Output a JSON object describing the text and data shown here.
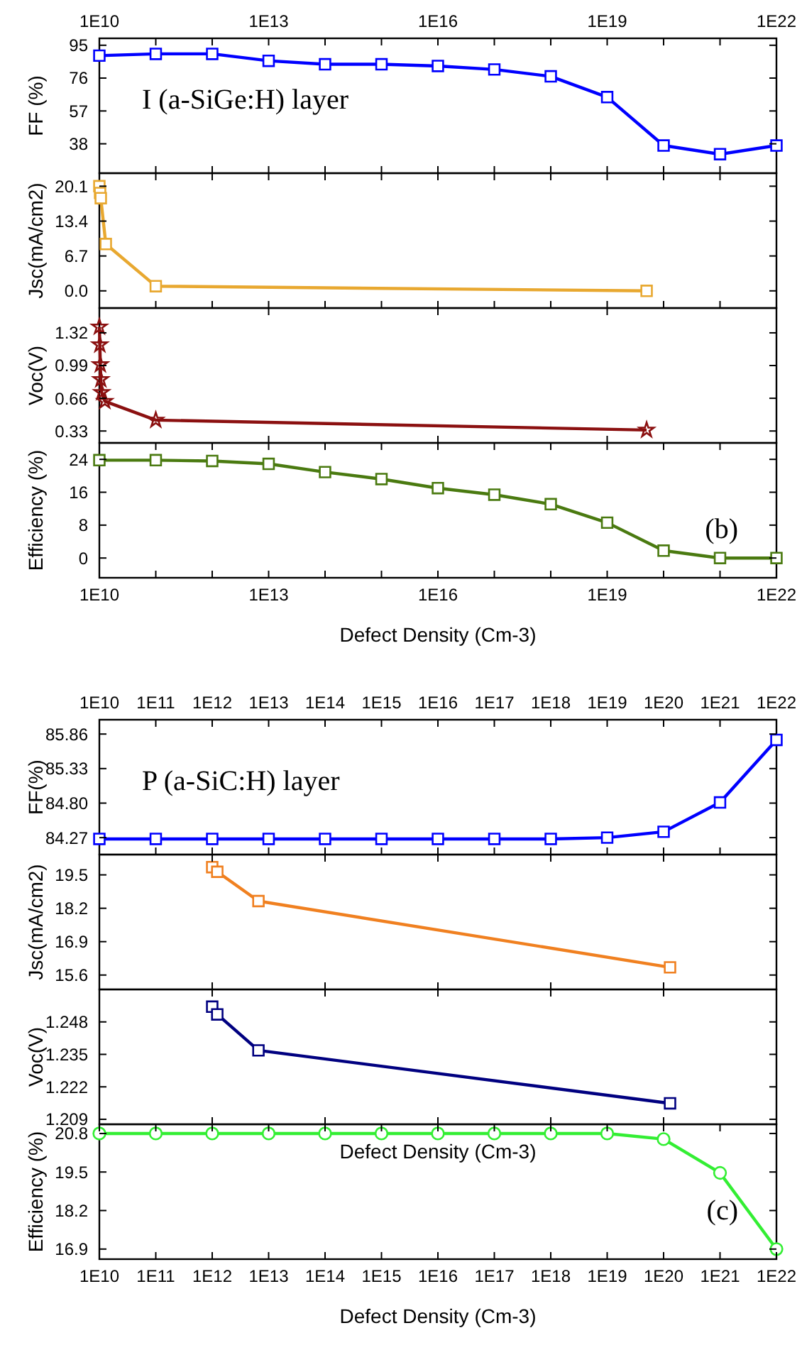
{
  "chart_data": [
    {
      "type": "line",
      "ylabel": "FF (%)",
      "annotations": [
        "I (a-SiGe:H) layer"
      ],
      "marker": "square",
      "xlim": [
        10000000000.0,
        1e+22
      ],
      "log": "x",
      "x": [
        10000000000.0,
        100000000000.0,
        1000000000000.0,
        10000000000000.0,
        100000000000000.0,
        1000000000000000.0,
        1e+16,
        1e+17,
        1e+18,
        1e+19,
        1e+20,
        1e+21,
        1e+22
      ],
      "series": [
        {
          "color": "#0000ff",
          "values": [
            89,
            90,
            90,
            86,
            84,
            84,
            83,
            81,
            77,
            65,
            37,
            32,
            37
          ]
        }
      ],
      "ylim": [
        21,
        99
      ],
      "yticks": [
        38,
        57,
        76,
        95
      ],
      "xticks": [
        {
          "value": 10000000000.0,
          "label": "1E10"
        },
        {
          "value": 100000000000.0,
          "label": null
        },
        {
          "value": 1000000000000.0,
          "label": null
        },
        {
          "value": 10000000000000.0,
          "label": "1E13"
        },
        {
          "value": 100000000000000.0,
          "label": null
        },
        {
          "value": 1000000000000000.0,
          "label": null
        },
        {
          "value": 1e+16,
          "label": "1E16"
        },
        {
          "value": 1e+17,
          "label": null
        },
        {
          "value": 1e+18,
          "label": null
        },
        {
          "value": 1e+19,
          "label": "1E19"
        },
        {
          "value": 1e+20,
          "label": null
        },
        {
          "value": 1e+21,
          "label": null
        },
        {
          "value": 1e+22,
          "label": "1E22"
        }
      ]
    },
    {
      "type": "line",
      "ylabel": "Jsc(mA/cm2)",
      "marker": "square",
      "tick_labels": "y",
      "xlim": [
        10000000000.0,
        1e+22
      ],
      "log": "x",
      "x": [
        10000000000.0,
        10300000000.0,
        10600000000.0,
        13000000000.0,
        100000000000.0,
        5e+19
      ],
      "series": [
        {
          "color": "#e8a830",
          "values": [
            20.1,
            18.8,
            17.8,
            9.0,
            0.9,
            0.0
          ]
        }
      ],
      "ylim": [
        -3.3,
        22.6
      ],
      "yticks": [
        {
          "value": 0,
          "label": "0.0"
        },
        6.7,
        13.4,
        20.1
      ],
      "xticks": [
        {
          "value": 100000000000.0,
          "label": null
        },
        {
          "value": 1000000000000.0,
          "label": null
        },
        {
          "value": 10000000000000.0,
          "label": null
        },
        {
          "value": 100000000000000.0,
          "label": null
        },
        {
          "value": 1000000000000000.0,
          "label": null
        },
        {
          "value": 1e+16,
          "label": null
        },
        {
          "value": 1e+17,
          "label": null
        },
        {
          "value": 1e+18,
          "label": null
        },
        {
          "value": 1e+19,
          "label": null
        },
        {
          "value": 1e+20,
          "label": null
        },
        {
          "value": 1e+21,
          "label": null
        }
      ]
    },
    {
      "type": "line",
      "ylabel": "Voc(V)",
      "marker": "star",
      "tick_labels": "y",
      "xlim": [
        10000000000.0,
        1e+22
      ],
      "log": "x",
      "x": [
        10000000000.0,
        10200000000.0,
        10400000000.0,
        10600000000.0,
        11000000000.0,
        12500000000.0,
        100000000000.0,
        5e+19
      ],
      "series": [
        {
          "color": "#8b1010",
          "values": [
            1.38,
            1.2,
            1.0,
            0.85,
            0.72,
            0.63,
            0.44,
            0.34
          ]
        }
      ],
      "ylim": [
        0.21,
        1.57
      ],
      "yticks": [
        0.33,
        0.66,
        0.99,
        1.32
      ],
      "xticks": [
        {
          "value": 10000000000000.0,
          "label": null
        },
        {
          "value": 1e+16,
          "label": null
        },
        {
          "value": 1e+19,
          "label": null
        },
        {
          "value": 1e+22,
          "label": null
        }
      ]
    },
    {
      "type": "line",
      "ylabel": "Efficiency (%)",
      "xlabel": "Defect Density (Cm-3)",
      "annotations": [
        "(b)"
      ],
      "marker": "square",
      "xlim": [
        10000000000.0,
        1e+22
      ],
      "log": "x",
      "x": [
        10000000000.0,
        100000000000.0,
        1000000000000.0,
        10000000000000.0,
        100000000000000.0,
        1000000000000000.0,
        1e+16,
        1e+17,
        1e+18,
        1e+19,
        1e+20,
        1e+21,
        1e+22
      ],
      "series": [
        {
          "color": "#4a7a10",
          "values": [
            23.8,
            23.8,
            23.6,
            22.9,
            20.9,
            19.2,
            17.0,
            15.4,
            13.1,
            8.6,
            1.8,
            0,
            0
          ]
        }
      ],
      "ylim": [
        -4.8,
        28
      ],
      "yticks": [
        0,
        8,
        16,
        24
      ],
      "xticks": [
        {
          "value": 10000000000.0,
          "label": "1E10"
        },
        {
          "value": 100000000000.0,
          "label": null
        },
        {
          "value": 1000000000000.0,
          "label": null
        },
        {
          "value": 10000000000000.0,
          "label": "1E13"
        },
        {
          "value": 100000000000000.0,
          "label": null
        },
        {
          "value": 1000000000000000.0,
          "label": null
        },
        {
          "value": 1e+16,
          "label": "1E16"
        },
        {
          "value": 1e+17,
          "label": null
        },
        {
          "value": 1e+18,
          "label": null
        },
        {
          "value": 1e+19,
          "label": "1E19"
        },
        {
          "value": 1e+20,
          "label": null
        },
        {
          "value": 1e+21,
          "label": null
        },
        {
          "value": 1e+22,
          "label": "1E22"
        }
      ]
    },
    {
      "type": "line",
      "ylabel": "FF(%)",
      "annotations": [
        "P (a-SiC:H) layer"
      ],
      "marker": "square",
      "xlim": [
        10000000000.0,
        1e+22
      ],
      "log": "x",
      "x": [
        10000000000.0,
        100000000000.0,
        1000000000000.0,
        10000000000000.0,
        100000000000000.0,
        1000000000000000.0,
        1e+16,
        1e+17,
        1e+18,
        1e+19,
        1e+20,
        1e+21,
        1e+22
      ],
      "series": [
        {
          "color": "#0000ff",
          "values": [
            84.25,
            84.25,
            84.25,
            84.25,
            84.25,
            84.25,
            84.25,
            84.25,
            84.25,
            84.27,
            84.36,
            84.81,
            85.77
          ]
        }
      ],
      "ylim": [
        84.01,
        86.08
      ],
      "yticks": [
        84.27,
        {
          "value": 84.8,
          "label": "84.80"
        },
        85.33,
        85.86
      ],
      "xticks": [
        {
          "value": 10000000000.0,
          "label": "1E10"
        },
        {
          "value": 100000000000.0,
          "label": "1E11"
        },
        {
          "value": 1000000000000.0,
          "label": "1E12"
        },
        {
          "value": 10000000000000.0,
          "label": "1E13"
        },
        {
          "value": 100000000000000.0,
          "label": "1E14"
        },
        {
          "value": 1000000000000000.0,
          "label": "1E15"
        },
        {
          "value": 1e+16,
          "label": "1E16"
        },
        {
          "value": 1e+17,
          "label": "1E17"
        },
        {
          "value": 1e+18,
          "label": "1E18"
        },
        {
          "value": 1e+19,
          "label": "1E19"
        },
        {
          "value": 1e+20,
          "label": "1E20"
        },
        {
          "value": 1e+21,
          "label": "1E21"
        },
        {
          "value": 1e+22,
          "label": "1E22"
        }
      ]
    },
    {
      "type": "line",
      "ylabel": "Jsc(mA/cm2)",
      "marker": "square",
      "tick_labels": "y",
      "xlim": [
        10000000000.0,
        1e+22
      ],
      "log": "x",
      "x": [
        1000000000000.0,
        1230000000000.0,
        6600000000000.0,
        1.3e+20
      ],
      "series": [
        {
          "color": "#f08020",
          "values": [
            19.8,
            19.62,
            18.48,
            15.9
          ]
        }
      ],
      "ylim": [
        15.04,
        20.29
      ],
      "yticks": [
        15.6,
        16.9,
        18.2,
        19.5
      ],
      "xticks": [
        {
          "value": 1000000000000.0,
          "label": null
        },
        {
          "value": 100000000000000.0,
          "label": null
        },
        {
          "value": 1e+16,
          "label": null
        },
        {
          "value": 1e+18,
          "label": null
        },
        {
          "value": 1e+20,
          "label": null
        },
        {
          "value": 1e+22,
          "label": null
        }
      ]
    },
    {
      "type": "line",
      "ylabel": "Voc(V)",
      "xlabel": "Defect Density (Cm-3)",
      "marker": "square",
      "tick_labels": "y",
      "xlim": [
        10000000000.0,
        1e+22
      ],
      "log": "x",
      "x": [
        1000000000000.0,
        1230000000000.0,
        6600000000000.0,
        1.3e+20
      ],
      "series": [
        {
          "color": "#000080",
          "values": [
            1.2541,
            1.251,
            1.2366,
            1.2154
          ]
        }
      ],
      "ylim": [
        1.207,
        1.261
      ],
      "yticks": [
        1.209,
        1.222,
        1.235,
        1.248
      ],
      "xticks": [
        {
          "value": 1000000000000.0,
          "label": null
        },
        {
          "value": 100000000000000.0,
          "label": null
        },
        {
          "value": 1e+16,
          "label": null
        },
        {
          "value": 1e+18,
          "label": null
        },
        {
          "value": 1e+20,
          "label": null
        },
        {
          "value": 1e+22,
          "label": null
        }
      ]
    },
    {
      "type": "line",
      "ylabel": "Efficiency (%)",
      "xlabel": "Defect Density (Cm-3)",
      "annotations": [
        "(c)"
      ],
      "marker": "circle",
      "xlim": [
        10000000000.0,
        1e+22
      ],
      "log": "x",
      "x": [
        10000000000.0,
        100000000000.0,
        1000000000000.0,
        10000000000000.0,
        100000000000000.0,
        1000000000000000.0,
        1e+16,
        1e+17,
        1e+18,
        1e+19,
        1e+20,
        1e+21,
        1e+22
      ],
      "series": [
        {
          "color": "#33ee33",
          "values": [
            20.8,
            20.8,
            20.8,
            20.8,
            20.8,
            20.8,
            20.8,
            20.8,
            20.8,
            20.8,
            20.61,
            19.47,
            16.9
          ]
        }
      ],
      "ylim": [
        16.56,
        21.11
      ],
      "yticks": [
        16.9,
        18.2,
        19.5,
        20.8
      ],
      "xticks": [
        {
          "value": 10000000000.0,
          "label": "1E10"
        },
        {
          "value": 100000000000.0,
          "label": "1E11"
        },
        {
          "value": 1000000000000.0,
          "label": "1E12"
        },
        {
          "value": 10000000000000.0,
          "label": "1E13"
        },
        {
          "value": 100000000000000.0,
          "label": "1E14"
        },
        {
          "value": 1000000000000000.0,
          "label": "1E15"
        },
        {
          "value": 1e+16,
          "label": "1E16"
        },
        {
          "value": 1e+17,
          "label": "1E17"
        },
        {
          "value": 1e+18,
          "label": "1E18"
        },
        {
          "value": 1e+19,
          "label": "1E19"
        },
        {
          "value": 1e+20,
          "label": "1E20"
        },
        {
          "value": 1e+21,
          "label": "1E21"
        },
        {
          "value": 1e+22,
          "label": "1E22"
        }
      ]
    }
  ]
}
